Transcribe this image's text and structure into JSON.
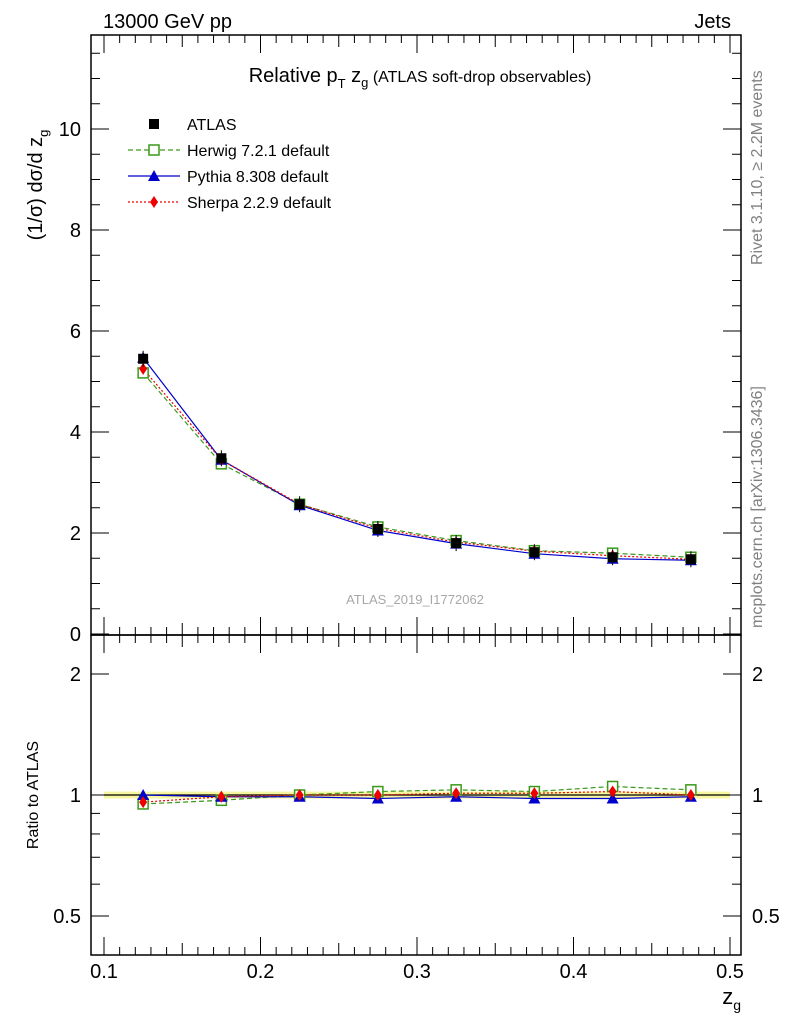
{
  "header": {
    "left": "13000 GeV pp",
    "right": "Jets"
  },
  "side_labels": {
    "rivet": "Rivet 3.1.10, ≥ 2.2M events",
    "mcplots": "mcplots.cern.ch [arXiv:1306.3436]"
  },
  "watermark": "ATLAS_2019_I1772062",
  "chart_data": [
    {
      "type": "line",
      "title": "Relative pT zg (ATLAS soft-drop observables)",
      "title_parts": {
        "main": "Relative p",
        "sub_T": "T",
        "mid": " z",
        "sub_g": "g",
        "rest": " (ATLAS soft-drop observables)"
      },
      "ylabel": "(1/σ) dσ/d z",
      "ylabel_sub": "g",
      "xlim": [
        0.1,
        0.5
      ],
      "ylim": [
        0,
        12
      ],
      "yticks": [
        0,
        2,
        4,
        6,
        8,
        10
      ],
      "ytick_labels": [
        "0",
        "2",
        "4",
        "6",
        "8",
        "10"
      ],
      "x": [
        0.125,
        0.175,
        0.225,
        0.275,
        0.325,
        0.375,
        0.425,
        0.475
      ],
      "series": [
        {
          "name": "ATLAS",
          "color": "#000000",
          "marker": "square",
          "values": [
            5.45,
            3.48,
            2.57,
            2.08,
            1.8,
            1.62,
            1.52,
            1.48
          ]
        },
        {
          "name": "Herwig 7.2.1 default",
          "color": "#3a9a18",
          "marker": "open-square",
          "dash": "5,3",
          "values": [
            5.17,
            3.37,
            2.57,
            2.12,
            1.85,
            1.65,
            1.6,
            1.52
          ]
        },
        {
          "name": "Pythia 8.308 default",
          "color": "#0000cc",
          "marker": "triangle",
          "values": [
            5.47,
            3.45,
            2.55,
            2.05,
            1.79,
            1.59,
            1.49,
            1.46
          ]
        },
        {
          "name": "Sherpa 2.2.9 default",
          "color": "#ee0000",
          "marker": "diamond",
          "dash": "2,2",
          "values": [
            5.25,
            3.45,
            2.57,
            2.09,
            1.82,
            1.64,
            1.55,
            1.48
          ]
        }
      ]
    },
    {
      "type": "line",
      "ylabel": "Ratio to ATLAS",
      "xlabel": "z",
      "xlabel_sub": "g",
      "xlim": [
        0.1,
        0.5
      ],
      "ylim": [
        0.35,
        2.4
      ],
      "xticks": [
        0.1,
        0.2,
        0.3,
        0.4,
        0.5
      ],
      "xtick_labels": [
        "0.1",
        "0.2",
        "0.3",
        "0.4",
        "0.5"
      ],
      "yticks": [
        0.5,
        1,
        2
      ],
      "ytick_labels": [
        "0.5",
        "1",
        "2"
      ],
      "band_color": "#f0f060",
      "x": [
        0.125,
        0.175,
        0.225,
        0.275,
        0.325,
        0.375,
        0.425,
        0.475
      ],
      "series": [
        {
          "name": "Herwig 7.2.1 default",
          "color": "#3a9a18",
          "marker": "open-square",
          "dash": "5,3",
          "values": [
            0.95,
            0.97,
            1.0,
            1.02,
            1.03,
            1.02,
            1.05,
            1.03
          ]
        },
        {
          "name": "Pythia 8.308 default",
          "color": "#0000cc",
          "marker": "triangle",
          "values": [
            1.0,
            0.99,
            0.99,
            0.98,
            0.99,
            0.98,
            0.98,
            0.99
          ]
        },
        {
          "name": "Sherpa 2.2.9 default",
          "color": "#ee0000",
          "marker": "diamond",
          "dash": "2,2",
          "values": [
            0.96,
            0.99,
            1.0,
            1.0,
            1.01,
            1.01,
            1.02,
            1.0
          ]
        }
      ]
    }
  ]
}
